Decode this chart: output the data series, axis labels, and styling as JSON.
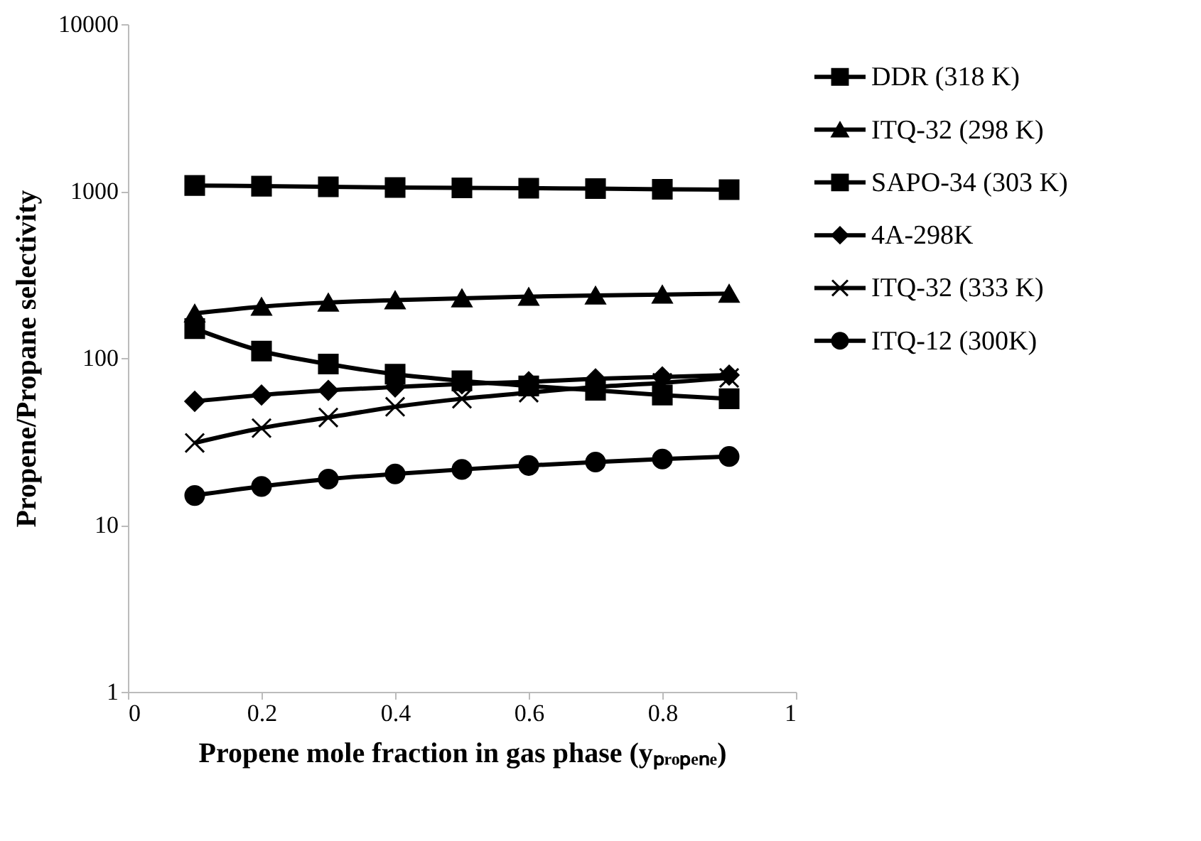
{
  "chart_data": {
    "type": "line",
    "xlabel": "Propene mole fraction in gas phase (yₚᵣₒₚₑₙₑ)",
    "ylabel": "Propene/Propane selectivity",
    "x": [
      0.1,
      0.2,
      0.3,
      0.4,
      0.5,
      0.6,
      0.7,
      0.8,
      0.9
    ],
    "series": [
      {
        "name": "DDR (318 K)",
        "color": "#000000",
        "marker": "square",
        "values": [
          1080,
          1070,
          1060,
          1050,
          1045,
          1040,
          1035,
          1025,
          1020
        ]
      },
      {
        "name": "ITQ-32 (298 K)",
        "color": "#000000",
        "marker": "triangle",
        "values": [
          185,
          203,
          215,
          222,
          228,
          233,
          237,
          240,
          243
        ]
      },
      {
        "name": "SAPO-34 (303 K)",
        "color": "#000000",
        "marker": "square",
        "values": [
          150,
          110,
          92,
          80,
          73,
          68,
          64,
          60,
          57
        ]
      },
      {
        "name": "4A-298K",
        "color": "#000000",
        "marker": "diamond",
        "values": [
          55,
          60,
          64,
          67,
          70,
          72,
          75,
          77,
          79
        ]
      },
      {
        "name": "ITQ-32 (333 K)",
        "color": "#000000",
        "marker": "cross",
        "values": [
          31,
          38,
          44,
          51,
          57,
          62,
          67,
          71,
          76
        ]
      },
      {
        "name": "ITQ-12 (300K)",
        "color": "#000000",
        "marker": "circle",
        "values": [
          15,
          17,
          18.8,
          20.2,
          21.5,
          22.7,
          23.8,
          24.8,
          25.7
        ]
      }
    ],
    "log": true,
    "xlim": [
      0,
      1
    ],
    "xticks": [
      0,
      0.2,
      0.4,
      0.6,
      0.8,
      1
    ],
    "ylim": [
      1,
      10000
    ],
    "yticks": [
      1,
      10,
      100,
      1000,
      10000
    ],
    "grid": false,
    "legend": "right",
    "line_style": "solid"
  }
}
